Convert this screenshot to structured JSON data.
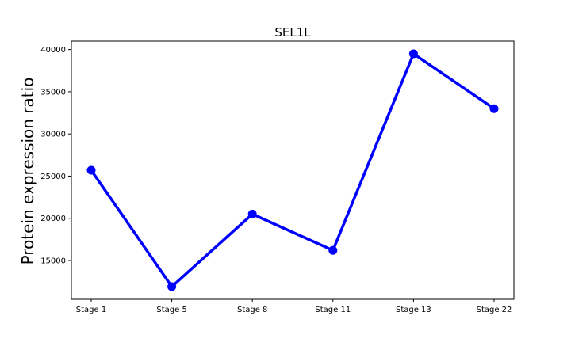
{
  "chart_data": {
    "type": "line",
    "title": "SEL1L",
    "xlabel": "",
    "ylabel": "Protein expression ratio",
    "categories": [
      "Stage 1",
      "Stage 5",
      "Stage 8",
      "Stage 11",
      "Stage 13",
      "Stage 22"
    ],
    "series": [
      {
        "values": [
          25700,
          11900,
          20500,
          16200,
          39500,
          33000
        ],
        "color": "#0000ff"
      }
    ],
    "ylim": [
      10400,
      41000
    ],
    "yticks": [
      15000,
      20000,
      25000,
      30000,
      35000,
      40000
    ],
    "ytick_labels": [
      "15000",
      "20000",
      "25000",
      "30000",
      "35000",
      "40000"
    ],
    "grid": false,
    "legend": false
  }
}
